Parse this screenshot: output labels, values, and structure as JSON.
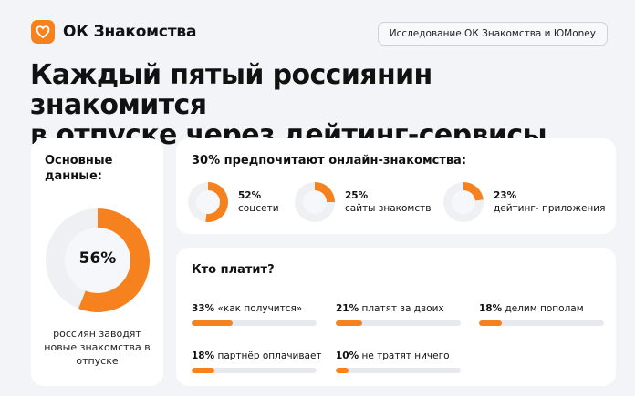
{
  "header": {
    "brand": "ОК Знакомства",
    "study_badge": "Исследование ОК Знакомства и ЮMoney",
    "logo_icon": "heart-icon",
    "accent_color": "#f5821f"
  },
  "headline": {
    "line1": "Каждый пятый россиянин знакомится",
    "line2": "в отпуске через дейтинг-сервисы"
  },
  "key_data": {
    "title": "Основные данные:",
    "percent_label": "56%",
    "caption": "россиян заводят новые знакомства в отпуске"
  },
  "online": {
    "title": "30% предпочитают онлайн-знакомства:"
  },
  "payment": {
    "title": "Кто платит?"
  },
  "chart_data": [
    {
      "type": "pie",
      "title": "Основные данные:",
      "values": [
        56,
        44
      ],
      "labels": [
        "56%",
        ""
      ],
      "caption": "россиян заводят новые знакомства в отпуске",
      "colors": [
        "#f5821f",
        "#eef0f4"
      ]
    },
    {
      "type": "pie",
      "title": "30% предпочитают онлайн-знакомства:",
      "items": [
        {
          "value": 52,
          "value_label": "52%",
          "label": "соцсети"
        },
        {
          "value": 25,
          "value_label": "25%",
          "label": "сайты знакомств"
        },
        {
          "value": 23,
          "value_label": "23%",
          "label": "дейтинг- приложения"
        }
      ],
      "colors": [
        "#f5821f",
        "#eef0f4"
      ]
    },
    {
      "type": "bar",
      "title": "Кто платит?",
      "items": [
        {
          "value": 33,
          "value_label": "33%",
          "label": "«как получится»"
        },
        {
          "value": 21,
          "value_label": "21%",
          "label": "платят за двоих"
        },
        {
          "value": 18,
          "value_label": "18%",
          "label": "делим пополам"
        },
        {
          "value": 18,
          "value_label": "18%",
          "label": "партнёр оплачивает"
        },
        {
          "value": 10,
          "value_label": "10%",
          "label": "не тратят ничего"
        }
      ],
      "xlim": [
        0,
        100
      ],
      "colors": [
        "#f5821f",
        "#e8e9ee"
      ]
    }
  ]
}
